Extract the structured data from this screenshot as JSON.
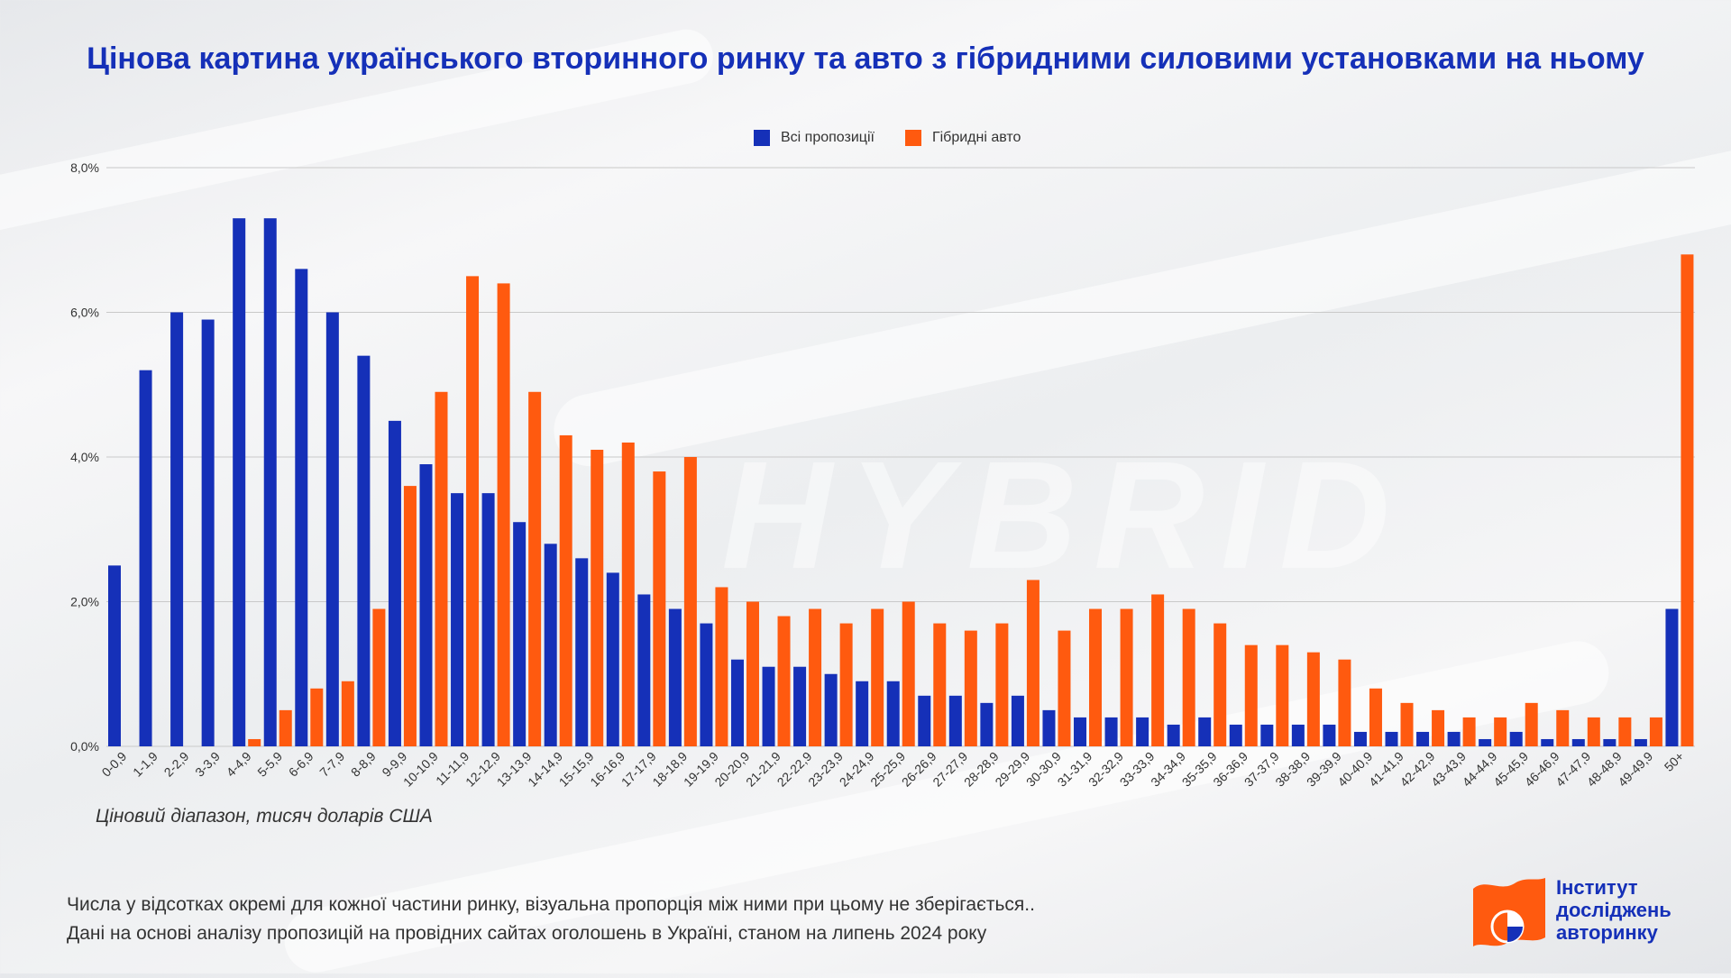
{
  "title": "Цінова картина українського вторинного ринку та авто з гібридними силовими установками на ньому",
  "legend": {
    "all": "Всі пропозиції",
    "hybrid": "Гібридні авто"
  },
  "x_axis_caption": "Ціновий діапазон, тисяч доларів США",
  "notes": [
    "Числа у відсотках окремі для кожної частини ринку, візуальна пропорція між ними при цьому не зберігається..",
    "Дані на основі аналізу пропозицій на провідних сайтах оголошень в Україні, станом на липень 2024 року"
  ],
  "logo": {
    "line1": "Інститут",
    "line2": "досліджень",
    "line3": "авторинку",
    "watermark": "HYBRID"
  },
  "colors": {
    "all": "#1530b8",
    "hybrid": "#ff5a0f",
    "title": "#1530b8",
    "grid": "#c9c9c9",
    "logo_flag": "#ff5a0f"
  },
  "chart_data": {
    "type": "bar",
    "title": "Цінова картина українського вторинного ринку та авто з гібридними силовими установками на ньому",
    "xlabel": "Ціновий діапазон, тисяч доларів США",
    "ylabel": "",
    "ylim": [
      0,
      8
    ],
    "yticks": [
      {
        "value": 0,
        "label": "0,0%"
      },
      {
        "value": 2,
        "label": "2,0%"
      },
      {
        "value": 4,
        "label": "4,0%"
      },
      {
        "value": 6,
        "label": "6,0%"
      },
      {
        "value": 8,
        "label": "8,0%"
      }
    ],
    "grid": true,
    "legend_position": "top-center",
    "categories": [
      "0-0,9",
      "1-1,9",
      "2-2,9",
      "3-3,9",
      "4-4,9",
      "5-5,9",
      "6-6,9",
      "7-7,9",
      "8-8,9",
      "9-9,9",
      "10-10,9",
      "11-11,9",
      "12-12,9",
      "13-13,9",
      "14-14,9",
      "15-15,9",
      "16-16,9",
      "17-17,9",
      "18-18,9",
      "19-19,9",
      "20-20,9",
      "21-21,9",
      "22-22,9",
      "23-23,9",
      "24-24,9",
      "25-25,9",
      "26-26,9",
      "27-27,9",
      "28-28,9",
      "29-29,9",
      "30-30,9",
      "31-31,9",
      "32-32,9",
      "33-33,9",
      "34-34,9",
      "35-35,9",
      "36-36,9",
      "37-37,9",
      "38-38,9",
      "39-39,9",
      "40-40,9",
      "41-41,9",
      "42-42,9",
      "43-43,9",
      "44-44,9",
      "45-45,9",
      "46-46,9",
      "47-47,9",
      "48-48,9",
      "49-49,9",
      "50+"
    ],
    "series": [
      {
        "name": "Всі пропозиції",
        "color": "#1530b8",
        "values": [
          2.5,
          5.2,
          6.0,
          5.9,
          7.3,
          7.3,
          6.6,
          6.0,
          5.4,
          4.5,
          3.9,
          3.5,
          3.5,
          3.1,
          2.8,
          2.6,
          2.4,
          2.1,
          1.9,
          1.7,
          1.2,
          1.1,
          1.1,
          1.0,
          0.9,
          0.9,
          0.7,
          0.7,
          0.6,
          0.7,
          0.5,
          0.4,
          0.4,
          0.4,
          0.3,
          0.4,
          0.3,
          0.3,
          0.3,
          0.3,
          0.2,
          0.2,
          0.2,
          0.2,
          0.1,
          0.2,
          0.1,
          0.1,
          0.1,
          0.1,
          1.9
        ]
      },
      {
        "name": "Гібридні авто",
        "color": "#ff5a0f",
        "values": [
          0,
          0,
          0,
          0,
          0.1,
          0.5,
          0.8,
          0.9,
          1.9,
          3.6,
          4.9,
          6.5,
          6.4,
          4.9,
          4.3,
          4.1,
          4.2,
          3.8,
          4.0,
          2.2,
          2.0,
          1.8,
          1.9,
          1.7,
          1.9,
          2.0,
          1.7,
          1.6,
          1.7,
          2.3,
          1.6,
          1.9,
          1.9,
          2.1,
          1.9,
          1.7,
          1.4,
          1.4,
          1.3,
          1.2,
          0.8,
          0.6,
          0.5,
          0.4,
          0.4,
          0.6,
          0.5,
          0.4,
          0.4,
          0.4,
          6.8
        ]
      }
    ]
  }
}
